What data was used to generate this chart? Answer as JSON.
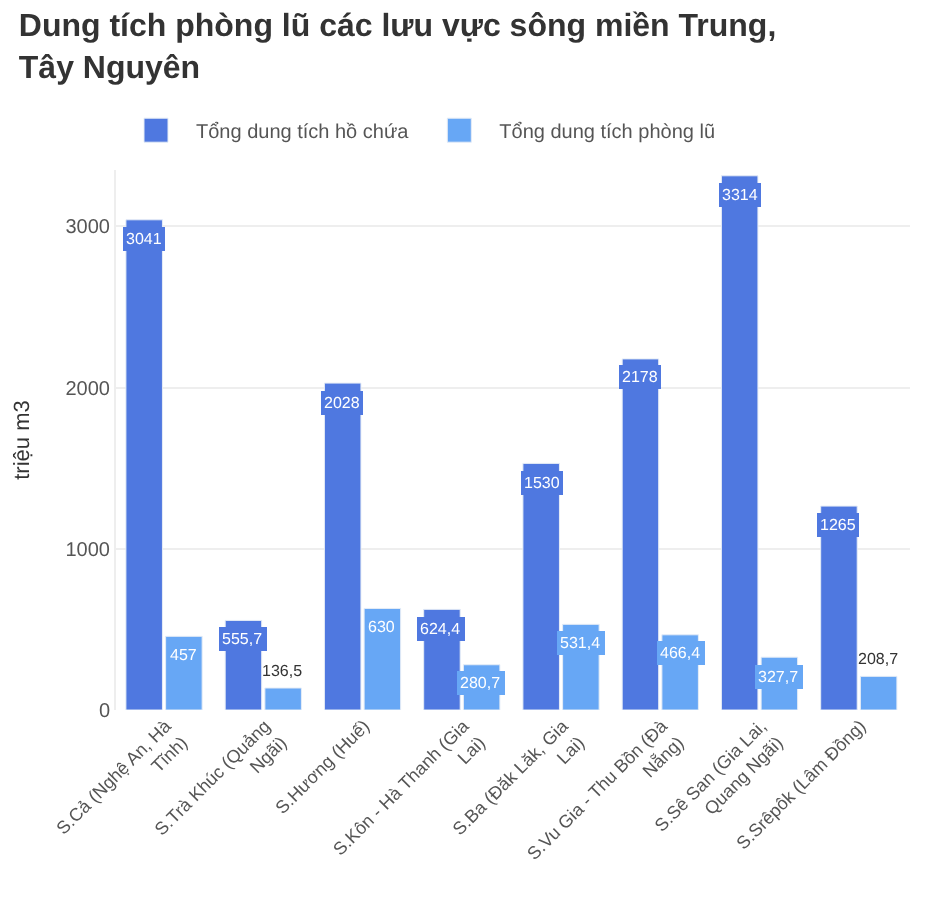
{
  "chart_data": {
    "type": "bar",
    "title": "Dung tích phòng lũ các lưu vực sông miền Trung, Tây Nguyên",
    "ylabel": "triệu m3",
    "categories": [
      "S.Cả (Nghệ An, Hà Tĩnh)",
      "S.Trà Khúc (Quảng Ngãi)",
      "S.Hương (Huế)",
      "S.Kôn - Hà Thanh (Gia Lai)",
      "S.Ba (Đăk Lăk, Gia Lai)",
      "S.Vu Gia - Thu Bồn (Đà Nẵng)",
      "S.Sê San (Gia Lai, Quang Ngãi)",
      "S.Srêpôk (Lâm Đồng)"
    ],
    "series": [
      {
        "name": "Tổng dung tích hồ chứa",
        "color": "#4f78e0",
        "values": [
          3041,
          555.7,
          2028,
          624.4,
          1530,
          2178,
          3314,
          1265
        ],
        "value_labels": [
          "3041",
          "555,7",
          "2028",
          "624,4",
          "1530",
          "2178",
          "3314",
          "1265"
        ]
      },
      {
        "name": "Tổng dung tích phòng lũ",
        "color": "#67a7f5",
        "values": [
          457,
          136.5,
          630,
          280.7,
          531.4,
          466.4,
          327.7,
          208.7
        ],
        "value_labels": [
          "457",
          "136,5",
          "630",
          "280,7",
          "531,4",
          "466,4",
          "327,7",
          "208,7"
        ]
      }
    ],
    "ylim": [
      0,
      3350
    ],
    "yticks": [
      0,
      1000,
      2000,
      3000
    ],
    "grid": "y",
    "legend": "top left"
  }
}
